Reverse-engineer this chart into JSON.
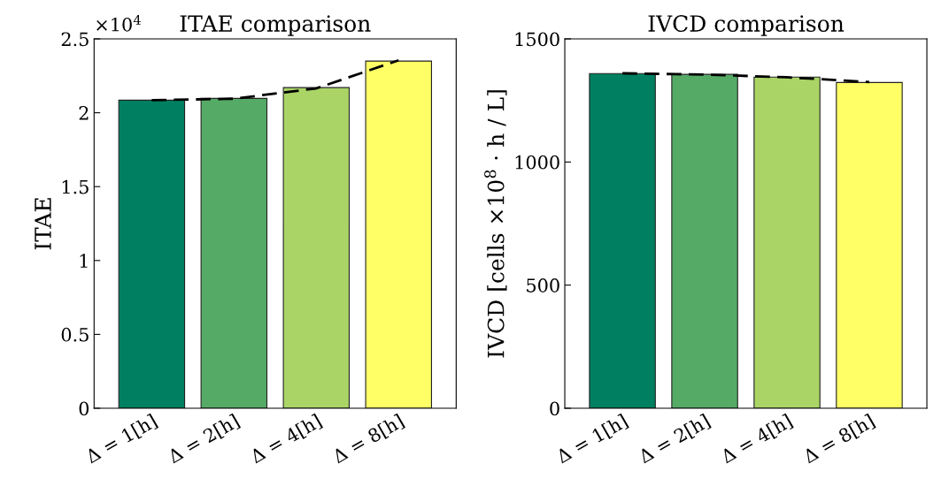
{
  "chart_data": [
    {
      "type": "bar",
      "title": "ITAE comparison",
      "ylabel": "ITAE",
      "annotations": [
        "×10$^{4}$"
      ],
      "categories": [
        "Δ = 1[h]",
        "Δ = 2[h]",
        "Δ = 4[h]",
        "Δ = 8[h]"
      ],
      "series": [
        {
          "colors": [
            "#008060",
            "#55aa66",
            "#aad566",
            "#ffff66"
          ],
          "values": [
            2.085,
            2.097,
            2.17,
            2.35
          ]
        },
        {
          "type": "line",
          "color": "#000000",
          "line_style": "dashed",
          "marker": "none",
          "values": [
            2.085,
            2.095,
            2.165,
            2.355
          ]
        }
      ],
      "ylim": [
        0,
        2.5
      ],
      "yticks": [
        0,
        0.5,
        1,
        1.5,
        2,
        2.5
      ]
    },
    {
      "type": "bar",
      "title": "IVCD comparison",
      "ylabel": "IVCD [cells ×10$^{8}$ · h / L]",
      "categories": [
        "Δ = 1[h]",
        "Δ = 2[h]",
        "Δ = 4[h]",
        "Δ = 8[h]"
      ],
      "series": [
        {
          "colors": [
            "#008060",
            "#55aa66",
            "#aad566",
            "#ffff66"
          ],
          "values": [
            1359,
            1356,
            1345,
            1323
          ]
        },
        {
          "type": "line",
          "color": "#000000",
          "line_style": "dashed",
          "marker": "none",
          "values": [
            1360,
            1355,
            1344,
            1325
          ]
        }
      ],
      "ylim": [
        0,
        1500
      ],
      "yticks": [
        0,
        500,
        1000,
        1500
      ]
    }
  ]
}
